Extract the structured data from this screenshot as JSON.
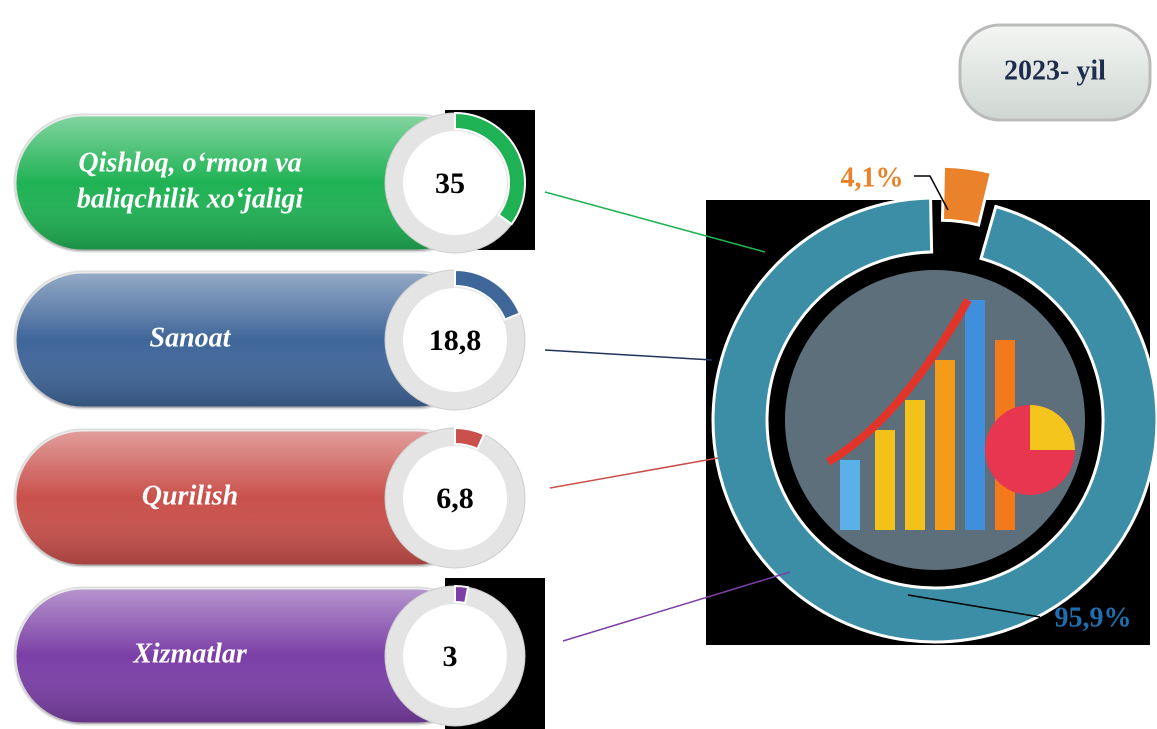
{
  "badge": "2023- yil",
  "sectors": [
    {
      "lines": [
        "Qishloq, o‘rmon va",
        "baliqchilik xo‘jaligi"
      ],
      "value": 35,
      "color": "#1fb254"
    },
    {
      "lines": [
        "Sanoat"
      ],
      "value": 18.8,
      "value_label": "18,8",
      "color": "#3f6699"
    },
    {
      "lines": [
        "Qurilish"
      ],
      "value": 6.8,
      "value_label": "6,8",
      "color": "#c9504b"
    },
    {
      "lines": [
        "Xizmatlar"
      ],
      "value": 3,
      "color": "#7b3fa6"
    }
  ],
  "chart_data": {
    "type": "pie",
    "values": [
      4.1,
      95.9
    ],
    "value_labels": [
      "4,1%",
      "95,9%"
    ],
    "colors": [
      "#e9822a",
      "#3b8ea5"
    ],
    "label_colors": [
      "#e9822a",
      "#1f6fb0"
    ]
  }
}
